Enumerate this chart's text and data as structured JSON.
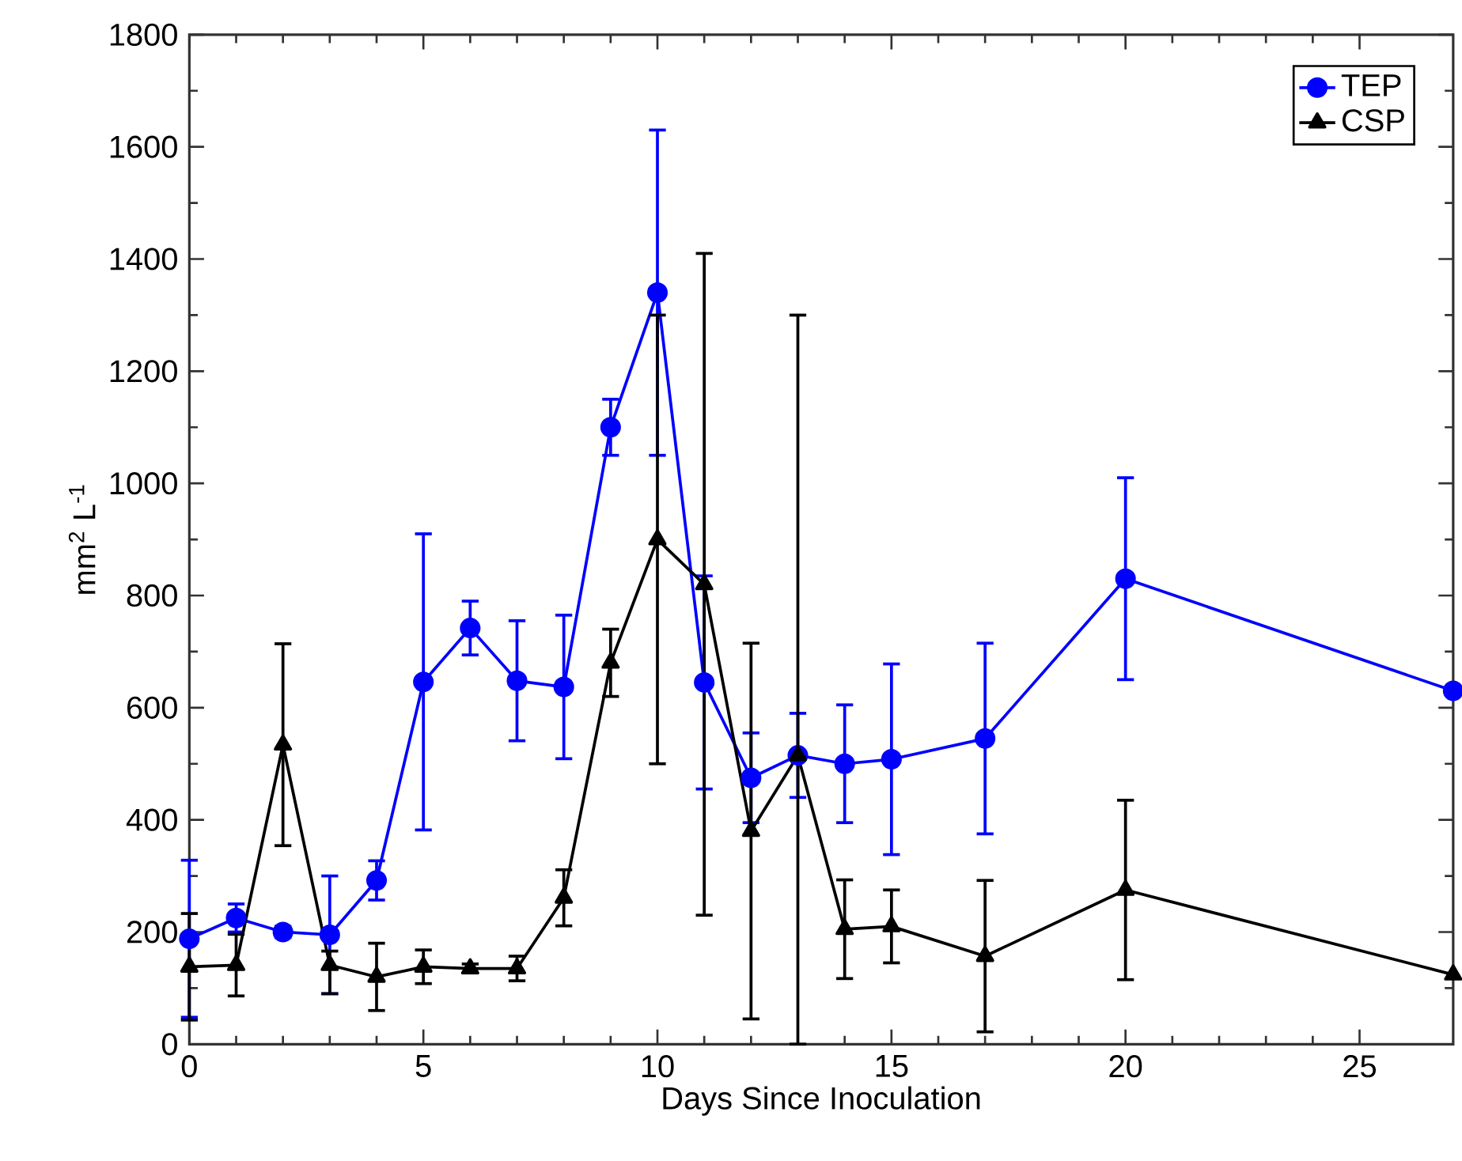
{
  "chart_data": {
    "type": "line",
    "xlabel": "Days Since Inoculation",
    "ylabel": "mm$^{2}$ L$^{-1}$",
    "x": [
      0,
      1,
      2,
      3,
      4,
      5,
      6,
      7,
      8,
      9,
      10,
      11,
      12,
      13,
      14,
      15,
      17,
      20,
      27
    ],
    "series": [
      {
        "name": "TEP",
        "color": "#0000ff",
        "marker": "circle",
        "values": [
          188,
          225,
          200,
          195,
          292,
          646,
          742,
          648,
          637,
          1100,
          1340,
          645,
          475,
          515,
          500,
          508,
          545,
          830,
          630
        ],
        "errors": [
          140,
          25,
          10,
          105,
          35,
          264,
          48,
          107,
          128,
          50,
          290,
          190,
          80,
          75,
          105,
          170,
          170,
          180,
          null
        ]
      },
      {
        "name": "CSP",
        "color": "#000000",
        "marker": "triangle",
        "values": [
          138,
          141,
          534,
          141,
          120,
          138,
          135,
          135,
          261,
          680,
          900,
          820,
          380,
          515,
          205,
          210,
          157,
          275,
          124
        ],
        "errors": [
          95,
          55,
          180,
          [
            90,
            166
          ],
          60,
          30,
          8,
          22,
          50,
          60,
          400,
          590,
          335,
          [
            0,
            1300
          ],
          88,
          65,
          135,
          160,
          null
        ]
      }
    ],
    "xlim": [
      0,
      27
    ],
    "ylim": [
      0,
      1800
    ],
    "xticks": [
      0,
      5,
      10,
      15,
      20,
      25
    ],
    "yticks": [
      0,
      200,
      400,
      600,
      800,
      1000,
      1200,
      1400,
      1600,
      1800
    ],
    "legend": "top right",
    "line_style": "solid"
  }
}
